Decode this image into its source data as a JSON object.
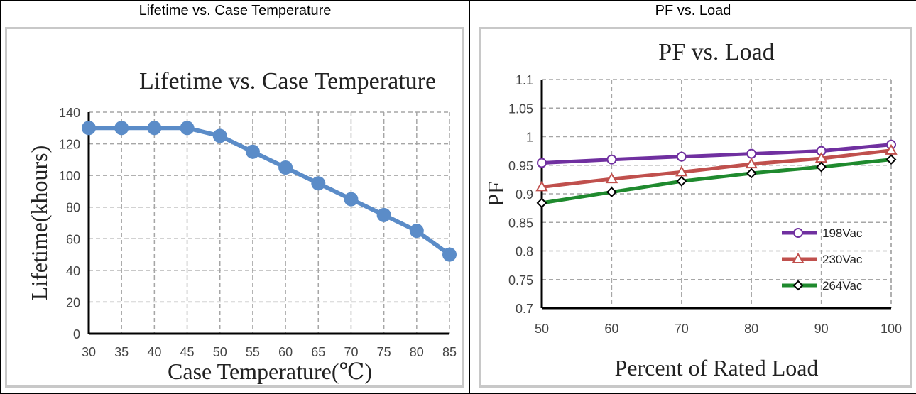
{
  "headers": {
    "left": "Lifetime vs. Case Temperature",
    "right": "PF vs. Load"
  },
  "chart_data": [
    {
      "type": "line",
      "title": "Lifetime vs. Case Temperature",
      "xlabel": "Case Temperature(℃)",
      "ylabel": "Lifetime(khours)",
      "x": [
        30,
        35,
        40,
        45,
        50,
        55,
        60,
        65,
        70,
        75,
        80,
        85
      ],
      "xlim": [
        30,
        85
      ],
      "ylim": [
        0,
        140
      ],
      "yticks": [
        0,
        20,
        40,
        60,
        80,
        100,
        120,
        140
      ],
      "xticks": [
        30,
        35,
        40,
        45,
        50,
        55,
        60,
        65,
        70,
        75,
        80,
        85
      ],
      "grid": true,
      "series": [
        {
          "values": [
            130,
            130,
            130,
            130,
            125,
            115,
            105,
            95,
            85,
            75,
            65,
            50
          ],
          "color": "#5b8cc8",
          "marker": "circle"
        }
      ]
    },
    {
      "type": "line",
      "title": "PF vs. Load",
      "xlabel": "Percent of Rated Load",
      "ylabel": "PF",
      "x": [
        50,
        60,
        70,
        80,
        90,
        100
      ],
      "xlim": [
        50,
        100
      ],
      "ylim": [
        0.7,
        1.1
      ],
      "yticks": [
        "0.7",
        "0.75",
        "0.8",
        "0.85",
        "0.9",
        "0.95",
        "1",
        "1.05",
        "1.1"
      ],
      "xticks": [
        50,
        60,
        70,
        80,
        90,
        100
      ],
      "grid": true,
      "legend": "bottom-right",
      "series": [
        {
          "name": "198Vac",
          "values": [
            0.954,
            0.96,
            0.965,
            0.97,
            0.975,
            0.986
          ],
          "color": "#7030a0",
          "marker": "circle"
        },
        {
          "name": "230Vac",
          "values": [
            0.912,
            0.926,
            0.938,
            0.952,
            0.962,
            0.976
          ],
          "color": "#c0504d",
          "marker": "triangle"
        },
        {
          "name": "264Vac",
          "values": [
            0.884,
            0.903,
            0.922,
            0.936,
            0.947,
            0.96
          ],
          "color": "#1f8a2e",
          "marker": "diamond"
        }
      ]
    }
  ]
}
